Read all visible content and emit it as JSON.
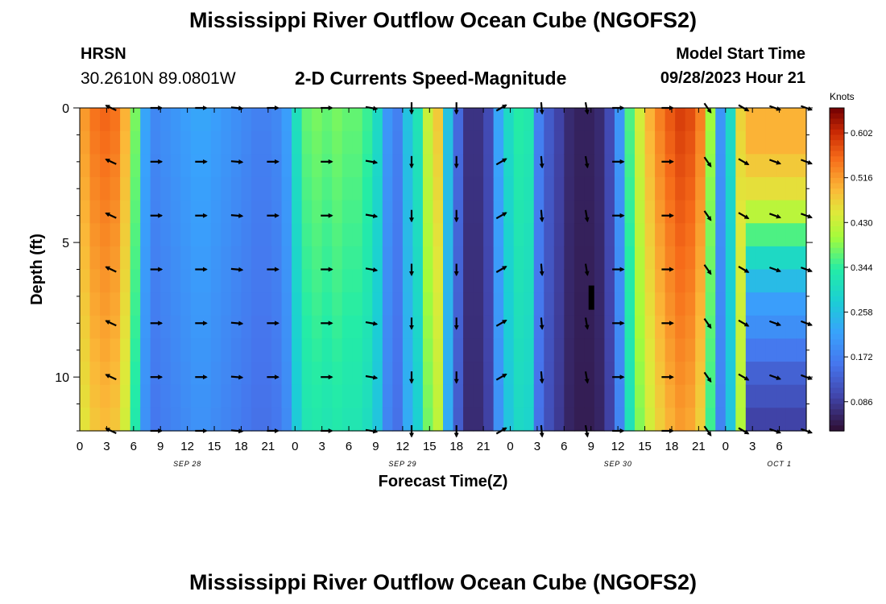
{
  "header": {
    "title": "Mississippi River Outflow Ocean Cube (NGOFS2)",
    "station": "HRSN",
    "coords": "30.2610N  89.0801W",
    "subtitle": "2-D Currents Speed-Magnitude",
    "model_start_label": "Model Start Time",
    "model_start_value": "09/28/2023 Hour 21"
  },
  "footer": {
    "title": "Mississippi River Outflow Ocean Cube (NGOFS2)"
  },
  "chart_data": {
    "type": "heatmap",
    "title": "2-D Currents Speed-Magnitude",
    "xlabel": "Forecast Time(Z)",
    "ylabel": "Depth (ft)",
    "colorbar_label": "Knots",
    "colorbar_ticks": [
      "0.602",
      "0.516",
      "0.430",
      "0.344",
      "0.258",
      "0.172",
      "0.086"
    ],
    "colorbar_values": [
      0.602,
      0.516,
      0.43,
      0.344,
      0.258,
      0.172,
      0.086
    ],
    "value_range": [
      0.03,
      0.65
    ],
    "x_range_hours": [
      0,
      81
    ],
    "x_tick_hours": [
      0,
      3,
      6,
      9,
      12,
      15,
      18,
      21,
      24,
      27,
      30,
      33,
      36,
      39,
      42,
      45,
      48,
      51,
      54,
      57,
      60,
      63,
      66,
      69,
      72,
      75,
      78,
      81
    ],
    "x_tick_labels": [
      "0",
      "3",
      "6",
      "9",
      "12",
      "15",
      "18",
      "21",
      "0",
      "3",
      "6",
      "9",
      "12",
      "15",
      "18",
      "21",
      "0",
      "3",
      "6",
      "9",
      "12",
      "15",
      "18",
      "21",
      "0",
      "3",
      "6"
    ],
    "date_labels": [
      {
        "text": "SEP 28",
        "hour": 12
      },
      {
        "text": "SEP 29",
        "hour": 36
      },
      {
        "text": "SEP 30",
        "hour": 60
      },
      {
        "text": "OCT 1",
        "hour": 78
      }
    ],
    "y_range_ft": [
      0,
      12
    ],
    "y_ticks": [
      0,
      5,
      10
    ],
    "y_tick_labels": [
      "0",
      "5",
      "10"
    ],
    "speed_profile_knots": [
      0.52,
      0.55,
      0.56,
      0.55,
      0.5,
      0.38,
      0.22,
      0.18,
      0.19,
      0.2,
      0.21,
      0.22,
      0.22,
      0.21,
      0.2,
      0.19,
      0.18,
      0.17,
      0.17,
      0.18,
      0.21,
      0.31,
      0.37,
      0.38,
      0.37,
      0.38,
      0.37,
      0.37,
      0.35,
      0.3,
      0.2,
      0.17,
      0.26,
      0.32,
      0.43,
      0.48,
      0.26,
      0.14,
      0.07,
      0.07,
      0.1,
      0.22,
      0.3,
      0.34,
      0.33,
      0.17,
      0.12,
      0.09,
      0.06,
      0.05,
      0.05,
      0.06,
      0.1,
      0.2,
      0.36,
      0.44,
      0.5,
      0.54,
      0.57,
      0.59,
      0.58,
      0.54,
      0.4,
      0.2,
      0.3,
      0.47,
      0.5,
      0.52,
      0.53,
      0.52,
      0.5,
      0.46
    ],
    "right_block_depth_profile": [
      0.5,
      0.5,
      0.48,
      0.46,
      0.42,
      0.36,
      0.3,
      0.25,
      0.21,
      0.19,
      0.16,
      0.13,
      0.11,
      0.09
    ],
    "vector_hours": [
      3.5,
      8.5,
      13.5,
      17.5,
      21.5,
      27.5,
      32.5,
      37,
      42,
      47,
      51.5,
      56.5,
      60,
      65.5,
      70,
      74,
      77.5,
      81
    ],
    "vector_depths_ft": [
      0,
      2,
      4,
      6,
      8,
      10,
      12
    ],
    "vector_angles_deg": [
      205,
      0,
      0,
      5,
      0,
      0,
      10,
      90,
      90,
      330,
      85,
      80,
      0,
      0,
      55,
      30,
      20,
      20
    ],
    "dead_cell": {
      "hour": 57,
      "depth_range_ft": [
        6.6,
        7.5
      ]
    }
  }
}
